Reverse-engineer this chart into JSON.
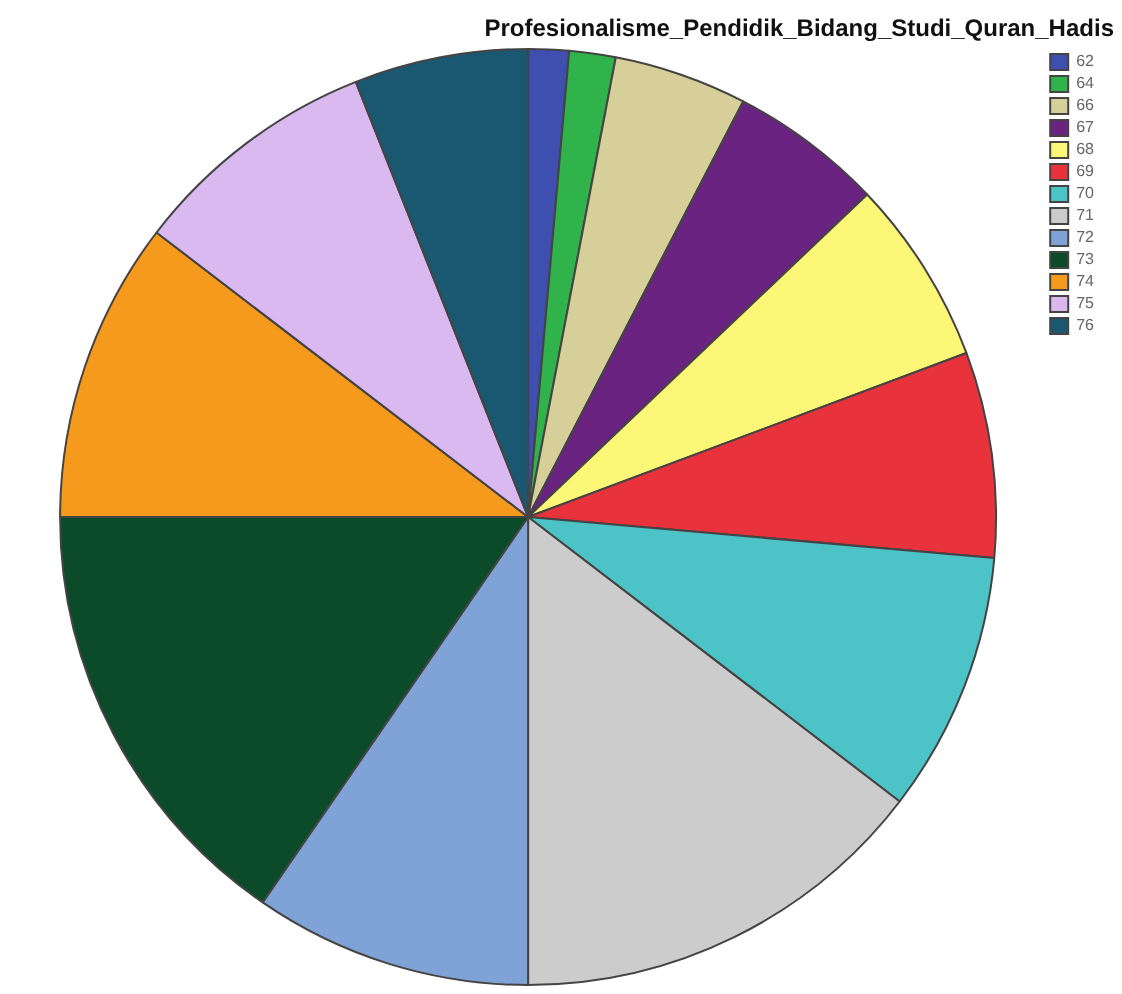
{
  "chart_data": {
    "type": "pie",
    "title": "Profesionalisme_Pendidik_Bidang_Studi_Quran_Hadis",
    "categories": [
      "62",
      "64",
      "66",
      "67",
      "68",
      "69",
      "70",
      "71",
      "72",
      "73",
      "74",
      "75",
      "76"
    ],
    "values": [
      1.4,
      1.6,
      4.6,
      5.3,
      6.4,
      7.1,
      9.0,
      14.6,
      9.6,
      15.4,
      10.4,
      8.6,
      6.0
    ],
    "colors": [
      "#3f4fb0",
      "#2fb34a",
      "#d6cf9a",
      "#6a2380",
      "#fdf777",
      "#e8323c",
      "#4cc3c7",
      "#cccccc",
      "#7fa3d6",
      "#0b4b2a",
      "#f59a1c",
      "#dab8f0",
      "#1a5872"
    ],
    "legend": "top right"
  }
}
